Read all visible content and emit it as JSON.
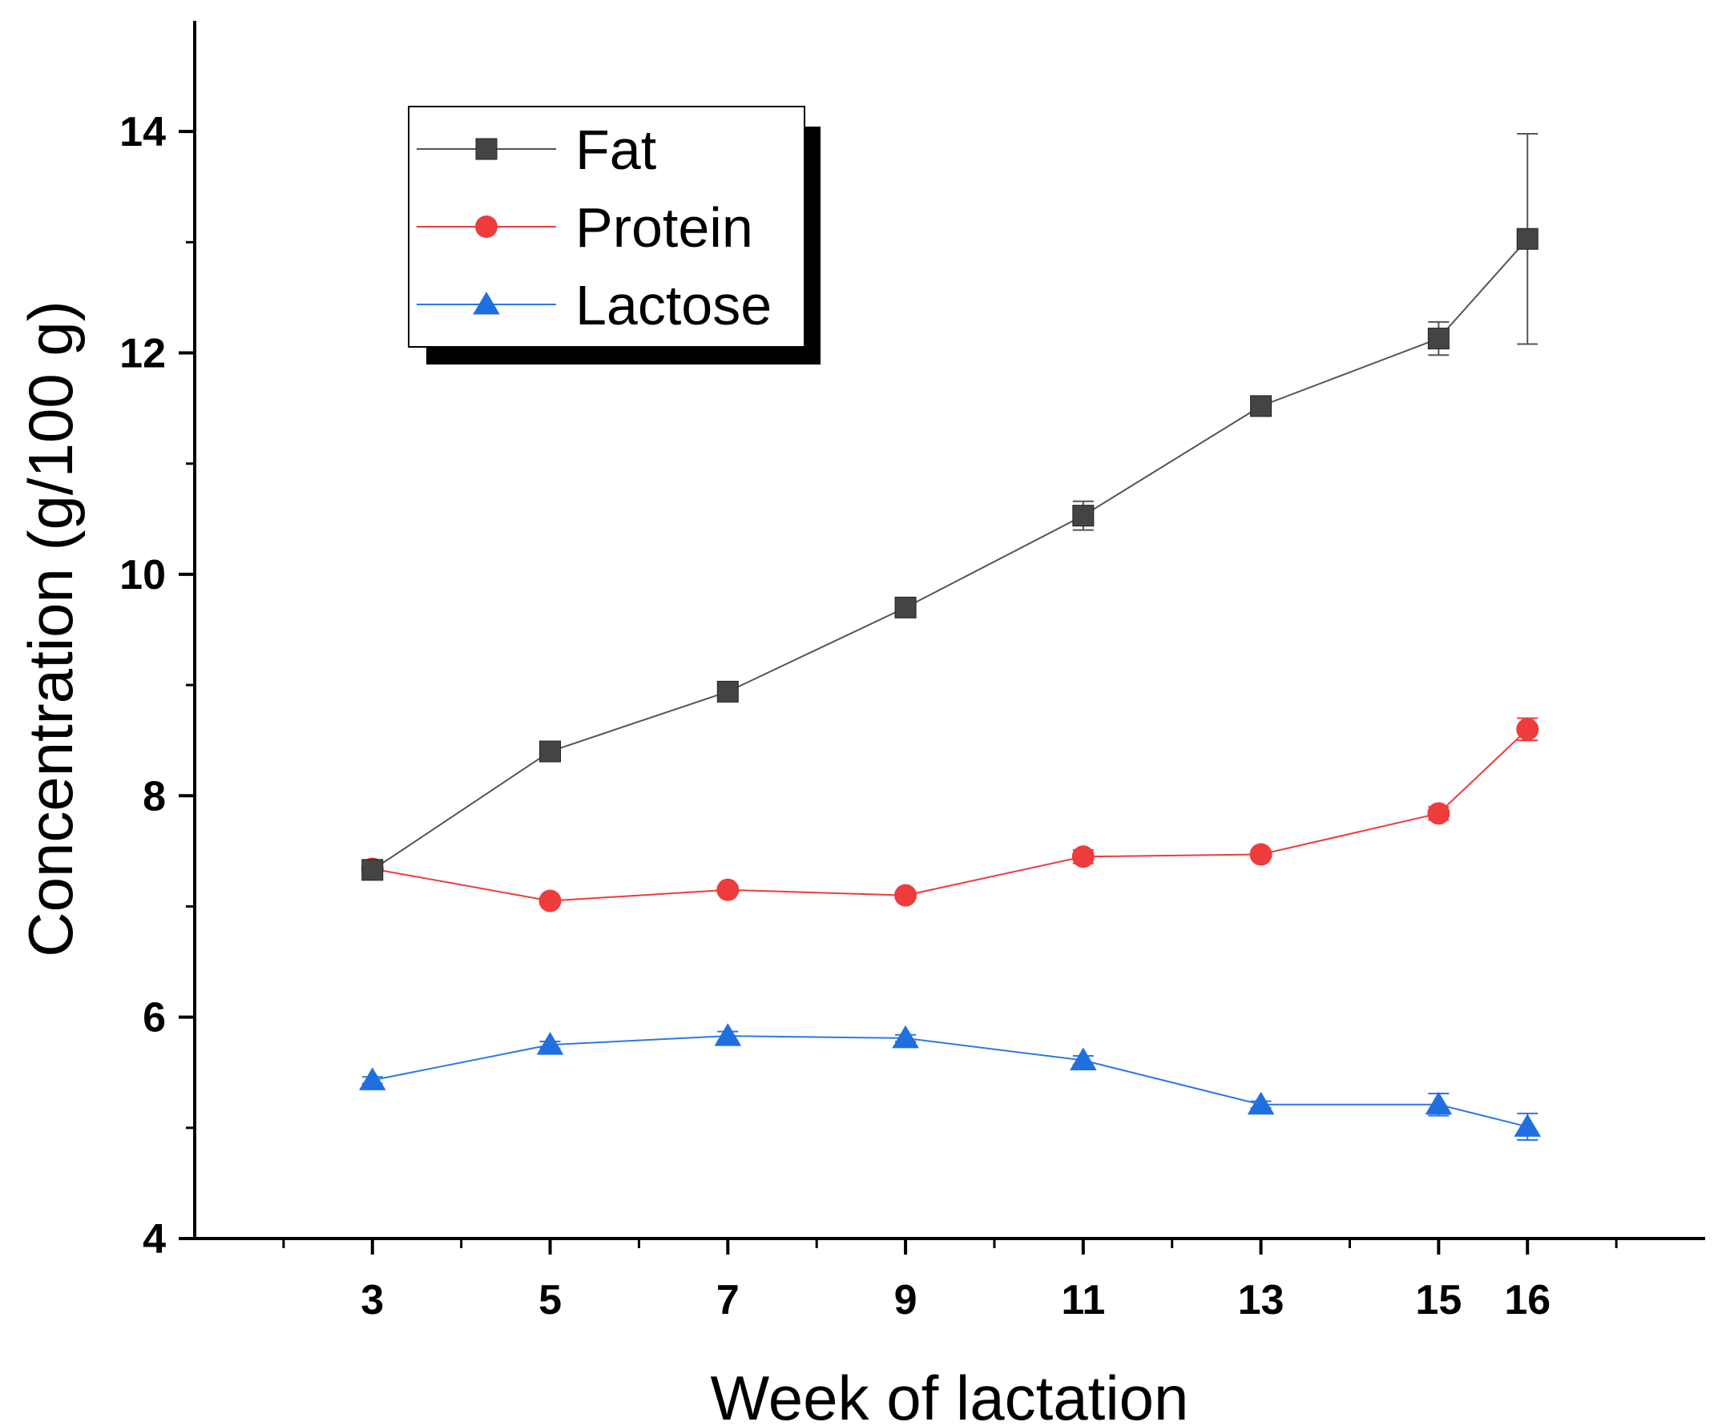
{
  "chart_data": {
    "type": "line",
    "title": "",
    "xlabel": "Week of lactation",
    "ylabel": "Concentration (g/100 g)",
    "x": [
      3,
      5,
      7,
      9,
      11,
      13,
      15,
      16
    ],
    "xticks": [
      3,
      5,
      7,
      9,
      11,
      13,
      15,
      16
    ],
    "xlim": [
      1,
      18
    ],
    "ylim": [
      4,
      15
    ],
    "yticks": [
      4,
      6,
      8,
      10,
      12,
      14
    ],
    "legend_position": "top-left",
    "series": [
      {
        "name": "Fat",
        "marker": "square",
        "color": "#444444",
        "line_color": "#555555",
        "values": [
          7.33,
          8.4,
          8.94,
          9.7,
          10.53,
          11.52,
          12.13,
          13.03
        ],
        "errors": [
          0.05,
          0.04,
          0.04,
          0.04,
          0.13,
          0.04,
          0.15,
          0.95
        ]
      },
      {
        "name": "Protein",
        "marker": "circle",
        "color": "#ee3b3b",
        "line_color": "#ee3b3b",
        "values": [
          7.34,
          7.05,
          7.15,
          7.1,
          7.45,
          7.47,
          7.84,
          8.6
        ],
        "errors": [
          0.04,
          0.03,
          0.03,
          0.03,
          0.06,
          0.03,
          0.06,
          0.1
        ]
      },
      {
        "name": "Lactose",
        "marker": "triangle",
        "color": "#1f6fe0",
        "line_color": "#2a78e8",
        "values": [
          5.43,
          5.75,
          5.83,
          5.81,
          5.61,
          5.21,
          5.21,
          5.01
        ],
        "errors": [
          0.03,
          0.03,
          0.04,
          0.03,
          0.04,
          0.03,
          0.1,
          0.12
        ]
      }
    ]
  }
}
